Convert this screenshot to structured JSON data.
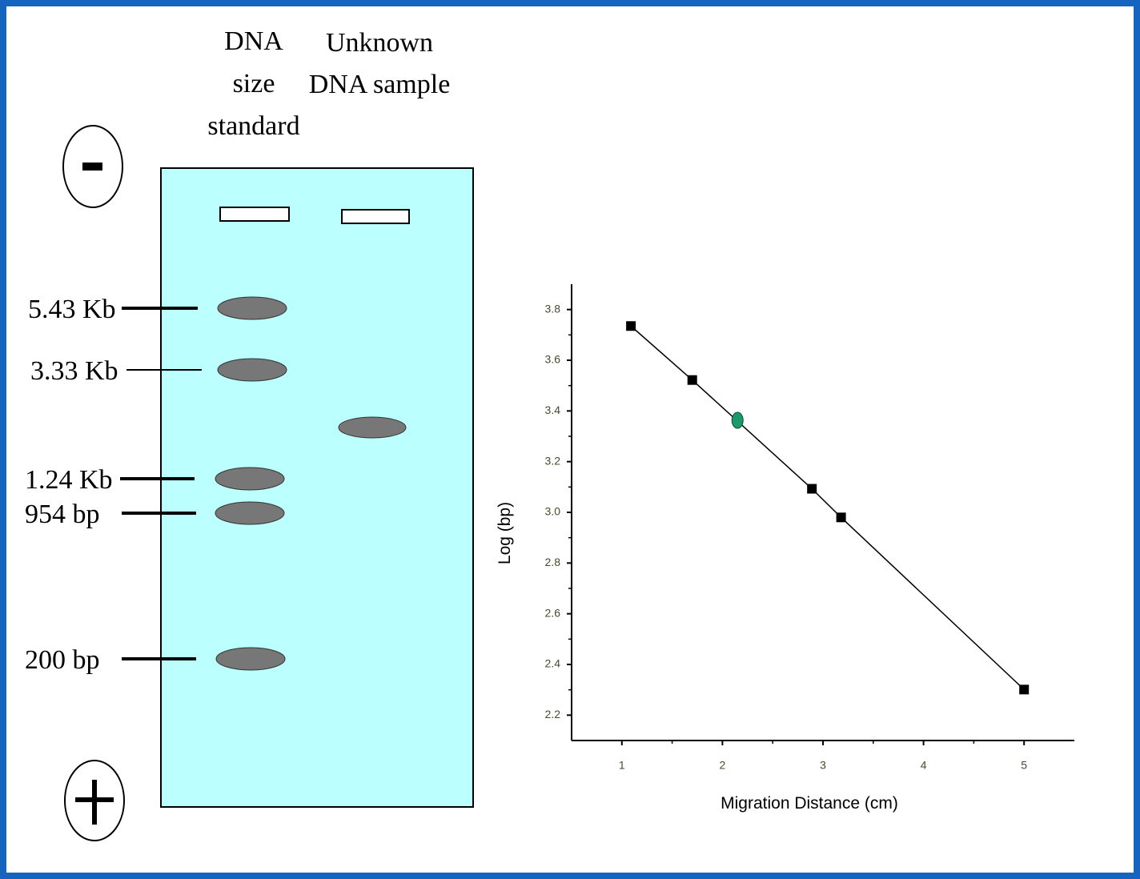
{
  "gel": {
    "lanes": [
      {
        "label": [
          "DNA",
          "size",
          "standard"
        ]
      },
      {
        "label": [
          "Unknown",
          "DNA sample"
        ]
      }
    ],
    "markers": [
      "5.43 Kb",
      "3.33 Kb",
      "1.24 Kb",
      "954 bp",
      "200 bp"
    ]
  },
  "chart_data": {
    "type": "scatter",
    "x_label": "Migration Distance (cm)",
    "y_label": "Log (bp)",
    "xlim": [
      0.5,
      5.5
    ],
    "xticks": [
      1,
      2,
      3,
      4,
      5
    ],
    "ylim": [
      2.1,
      3.9
    ],
    "yticks": [
      2.2,
      2.4,
      2.6,
      2.8,
      {
        "value": 3,
        "label": "3.0"
      },
      3.2,
      3.4,
      3.6,
      3.8
    ],
    "series": [
      {
        "color": "#000000",
        "marker": "square",
        "line": true,
        "x": [
          1.09,
          1.7,
          2.89,
          3.18,
          5.0
        ],
        "values": [
          3.735,
          3.522,
          3.093,
          2.98,
          2.301
        ]
      },
      {
        "color": "#1a9a6a",
        "marker": "circle",
        "line": false,
        "x": [
          2.15
        ],
        "values": [
          3.363
        ]
      }
    ]
  }
}
